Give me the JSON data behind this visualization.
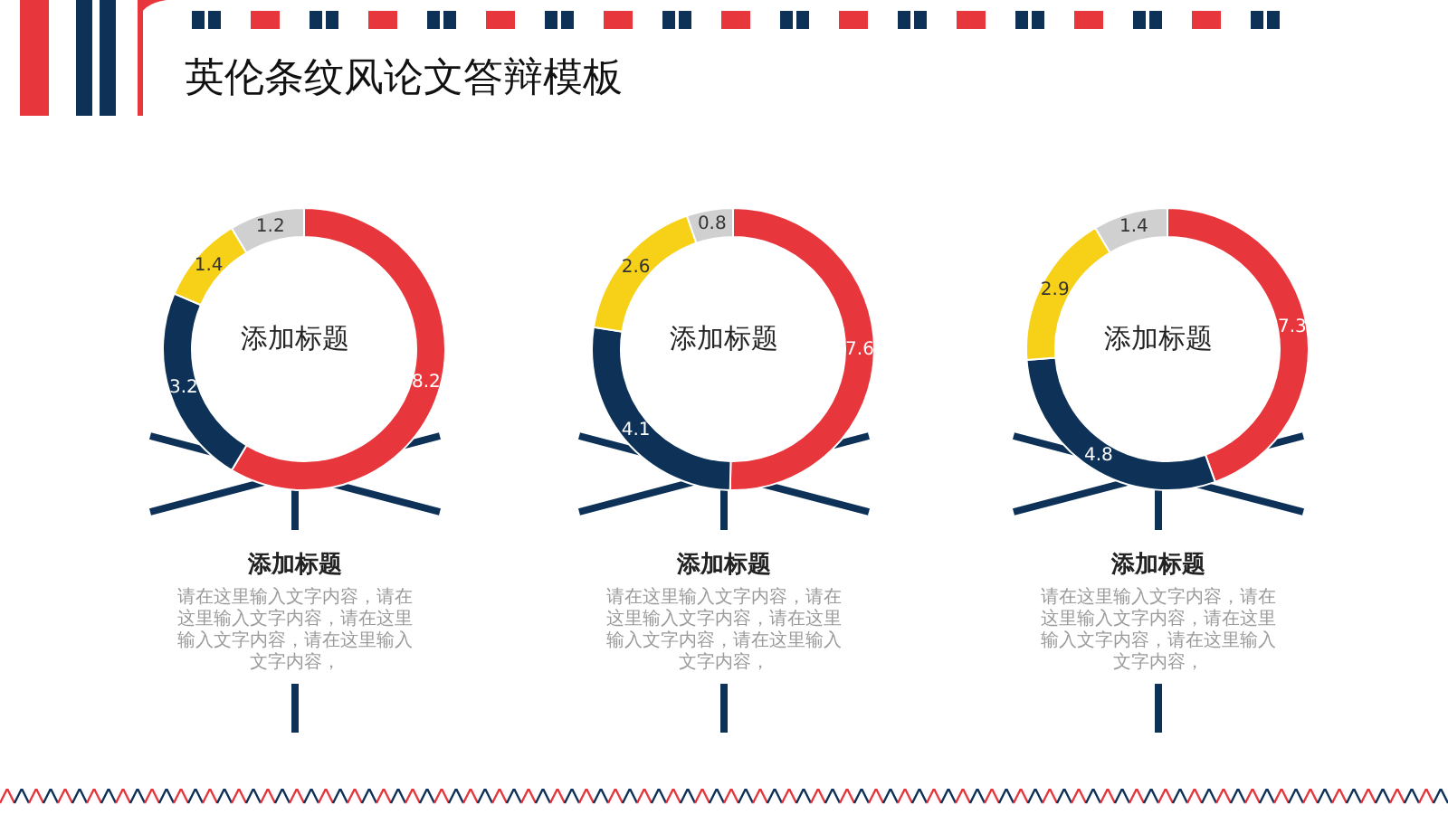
{
  "chart_data": [
    {
      "type": "donut",
      "title": "添加标题",
      "subtitle": "添加标题",
      "annotations": [
        "请在这里输入文字内容，请在这里输入文字内容，请在这里输入文字内容，请在这里输入文字内容，",
        "英伦条纹风论文答辩模板"
      ],
      "categories": [
        null,
        null,
        null,
        null
      ],
      "values": [
        8.2,
        3.2,
        1.4,
        1.2
      ],
      "colors": [
        "#e8363d",
        "#0d3157",
        "#f7d117",
        "#d0d0d0"
      ],
      "data_labels": true
    },
    {
      "type": "donut",
      "title": "添加标题",
      "subtitle": "添加标题",
      "annotations": [
        "请在这里输入文字内容，请在这里输入文字内容，请在这里输入文字内容，请在这里输入文字内容，"
      ],
      "categories": [
        null,
        null,
        null,
        null
      ],
      "values": [
        7.6,
        4.1,
        2.6,
        0.8
      ],
      "colors": [
        "#e8363d",
        "#0d3157",
        "#f7d117",
        "#d0d0d0"
      ],
      "data_labels": true
    },
    {
      "type": "donut",
      "title": "添加标题",
      "subtitle": "添加标题",
      "annotations": [
        "请在这里输入文字内容，请在这里输入文字内容，请在这里输入文字内容，请在这里输入文字内容，"
      ],
      "categories": [
        null,
        null,
        null,
        null
      ],
      "values": [
        7.3,
        4.8,
        2.9,
        1.4
      ],
      "colors": [
        "#e8363d",
        "#0d3157",
        "#f7d117",
        "#d0d0d0"
      ],
      "data_labels": true
    }
  ]
}
